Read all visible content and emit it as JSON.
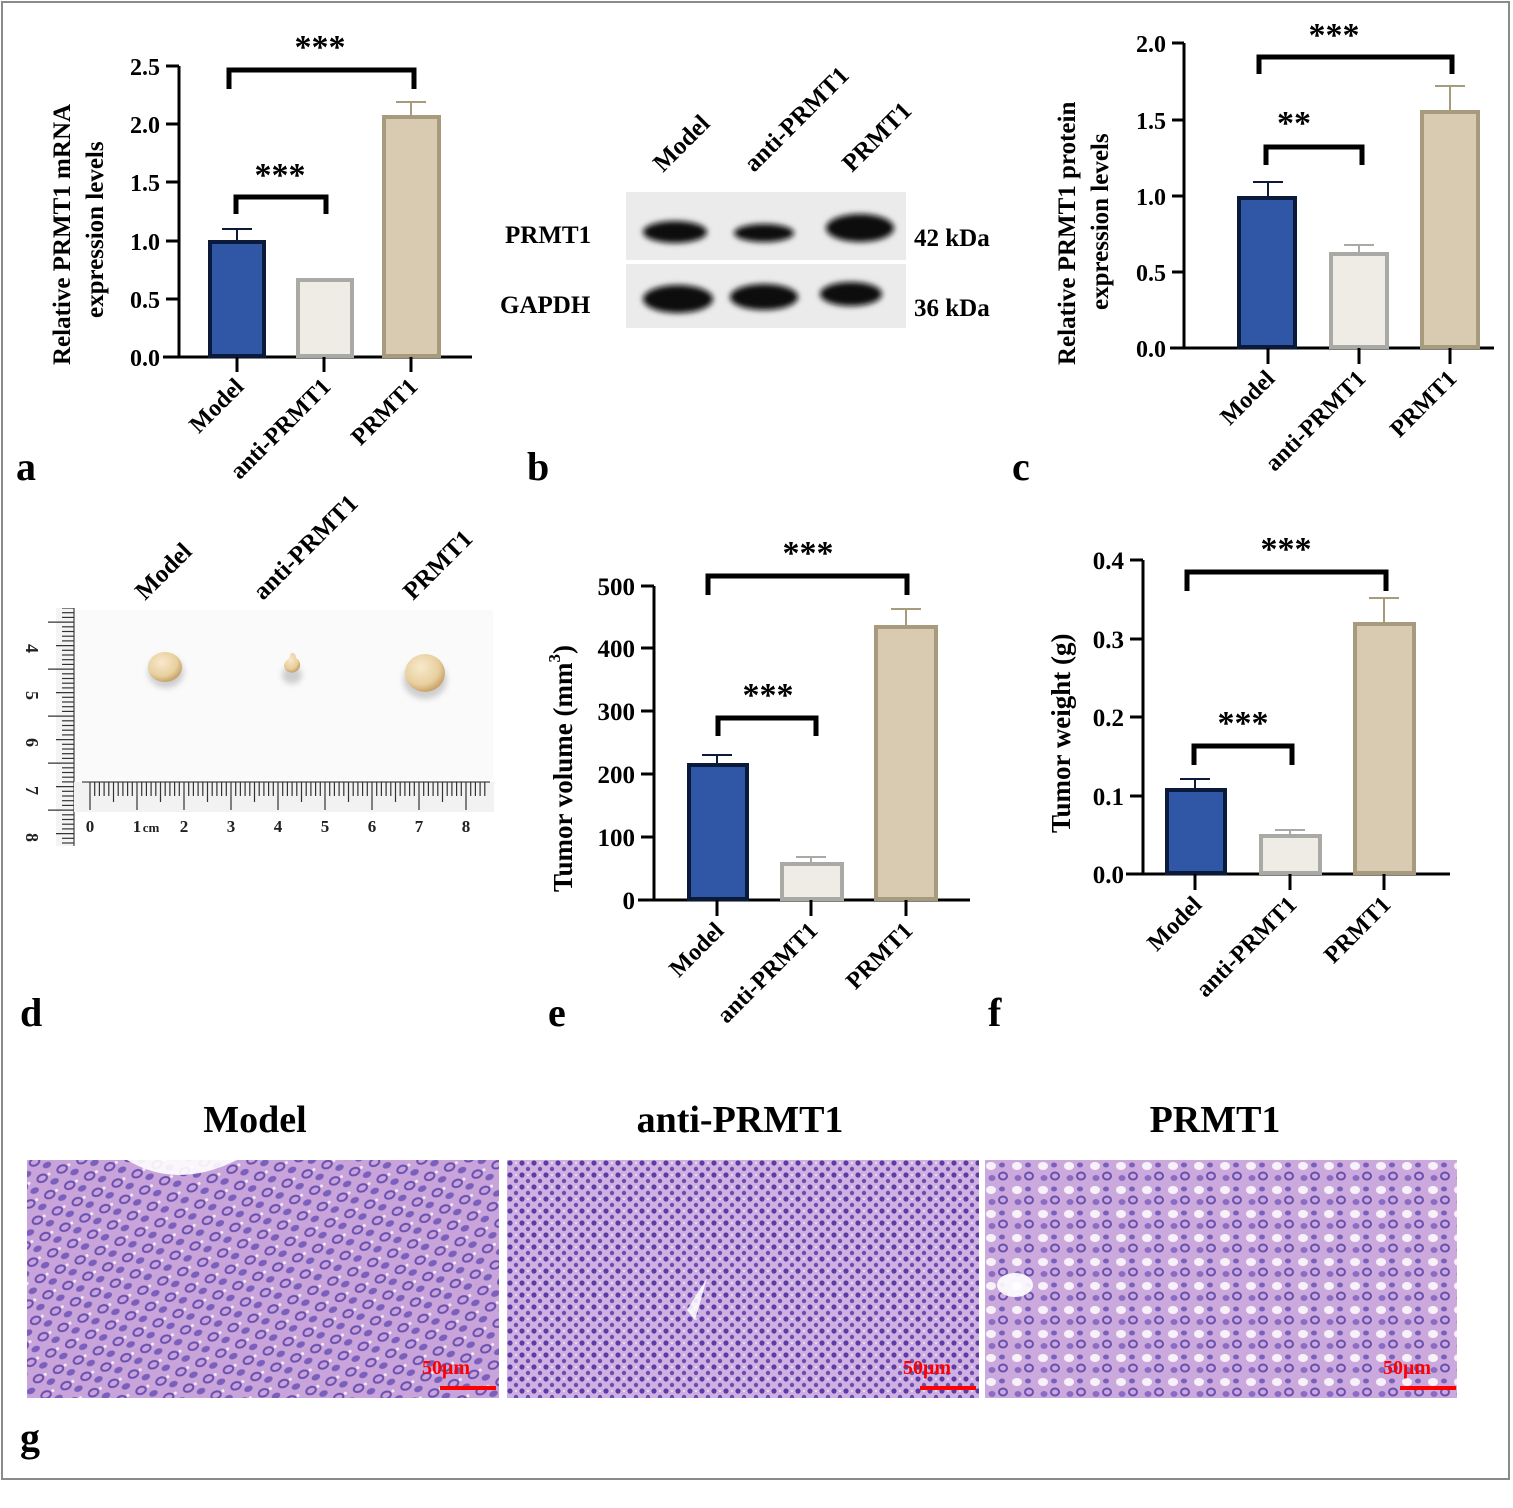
{
  "groups": [
    "Model",
    "anti-PRMT1",
    "PRMT1"
  ],
  "colors": {
    "model_fill": "#2f57a5",
    "model_edge": "#0b1a3a",
    "anti_fill": "#efece6",
    "anti_edge": "#a9a9a6",
    "prmt1_fill": "#d8cbb2",
    "prmt1_edge": "#a89a7c",
    "scale_bar": "#ff0000",
    "he_stain": "#c9a6dc",
    "he_nuclei": "#6a4fb0"
  },
  "panels": {
    "a": {
      "letter": "a"
    },
    "b": {
      "letter": "b",
      "lane_labels": [
        "Model",
        "anti-PRMT1",
        "PRMT1"
      ],
      "rows": [
        {
          "protein": "PRMT1",
          "mw": "42 kDa"
        },
        {
          "protein": "GAPDH",
          "mw": "36 kDa"
        }
      ]
    },
    "c": {
      "letter": "c"
    },
    "d": {
      "letter": "d",
      "labels": [
        "Model",
        "anti-PRMT1",
        "PRMT1"
      ],
      "ruler_vertical_ticks": [
        "4",
        "5",
        "6",
        "7",
        "8"
      ],
      "ruler_horizontal_ticks": [
        "0",
        "1",
        "2",
        "3",
        "4",
        "5",
        "6",
        "7",
        "8"
      ],
      "ruler_unit": "cm"
    },
    "e": {
      "letter": "e"
    },
    "f": {
      "letter": "f"
    },
    "g": {
      "letter": "g",
      "titles": [
        "Model",
        "anti-PRMT1",
        "PRMT1"
      ],
      "scale_bar_label": "50μm"
    }
  },
  "chart_data": [
    {
      "panel": "a",
      "type": "bar",
      "categories": [
        "Model",
        "anti-PRMT1",
        "PRMT1"
      ],
      "values": [
        1.0,
        0.67,
        2.07
      ],
      "errors": [
        0.1,
        0.01,
        0.12
      ],
      "title": "",
      "xlabel": "",
      "ylabel": "Relative PRMT1 mRNA expression levels",
      "ylabel_lines": [
        "Relative PRMT1 mRNA",
        "expression levels"
      ],
      "ylim": [
        0,
        2.5
      ],
      "yticks": [
        "0.0",
        "0.5",
        "1.0",
        "1.5",
        "2.0",
        "2.5"
      ],
      "grid": false,
      "significance": [
        {
          "pair": [
            "Model",
            "anti-PRMT1"
          ],
          "label": "***"
        },
        {
          "pair": [
            "Model",
            "PRMT1"
          ],
          "label": "***"
        }
      ]
    },
    {
      "panel": "c",
      "type": "bar",
      "categories": [
        "Model",
        "anti-PRMT1",
        "PRMT1"
      ],
      "values": [
        1.0,
        0.63,
        1.57
      ],
      "errors": [
        0.1,
        0.05,
        0.16
      ],
      "title": "",
      "xlabel": "",
      "ylabel": "Relative PRMT1 protein expression levels",
      "ylabel_lines": [
        "Relative PRMT1 protein",
        "expression levels"
      ],
      "ylim": [
        0,
        2.0
      ],
      "yticks": [
        "0.0",
        "0.5",
        "1.0",
        "1.5",
        "2.0"
      ],
      "grid": false,
      "significance": [
        {
          "pair": [
            "Model",
            "anti-PRMT1"
          ],
          "label": "**"
        },
        {
          "pair": [
            "Model",
            "PRMT1"
          ],
          "label": "***"
        }
      ]
    },
    {
      "panel": "e",
      "type": "bar",
      "categories": [
        "Model",
        "anti-PRMT1",
        "PRMT1"
      ],
      "values": [
        212,
        55,
        434
      ],
      "errors": [
        13,
        7,
        28
      ],
      "title": "",
      "xlabel": "",
      "ylabel": "Tumor volume (mm³)",
      "ylabel_lines": [
        "Tumor volume (mm",
        "3",
        ")"
      ],
      "ylim": [
        0,
        500
      ],
      "yticks": [
        "0",
        "100",
        "200",
        "300",
        "400",
        "500"
      ],
      "grid": false,
      "significance": [
        {
          "pair": [
            "Model",
            "anti-PRMT1"
          ],
          "label": "***"
        },
        {
          "pair": [
            "Model",
            "PRMT1"
          ],
          "label": "***"
        }
      ]
    },
    {
      "panel": "f",
      "type": "bar",
      "categories": [
        "Model",
        "anti-PRMT1",
        "PRMT1"
      ],
      "values": [
        0.109,
        0.049,
        0.319
      ],
      "errors": [
        0.012,
        0.006,
        0.032
      ],
      "title": "",
      "xlabel": "",
      "ylabel": "Tumor weight (g)",
      "ylabel_lines": [
        "Tumor weight (g)"
      ],
      "ylim": [
        0,
        0.4
      ],
      "yticks": [
        "0.0",
        "0.1",
        "0.2",
        "0.3",
        "0.4"
      ],
      "grid": false,
      "significance": [
        {
          "pair": [
            "Model",
            "anti-PRMT1"
          ],
          "label": "***"
        },
        {
          "pair": [
            "Model",
            "PRMT1"
          ],
          "label": "***"
        }
      ]
    }
  ]
}
